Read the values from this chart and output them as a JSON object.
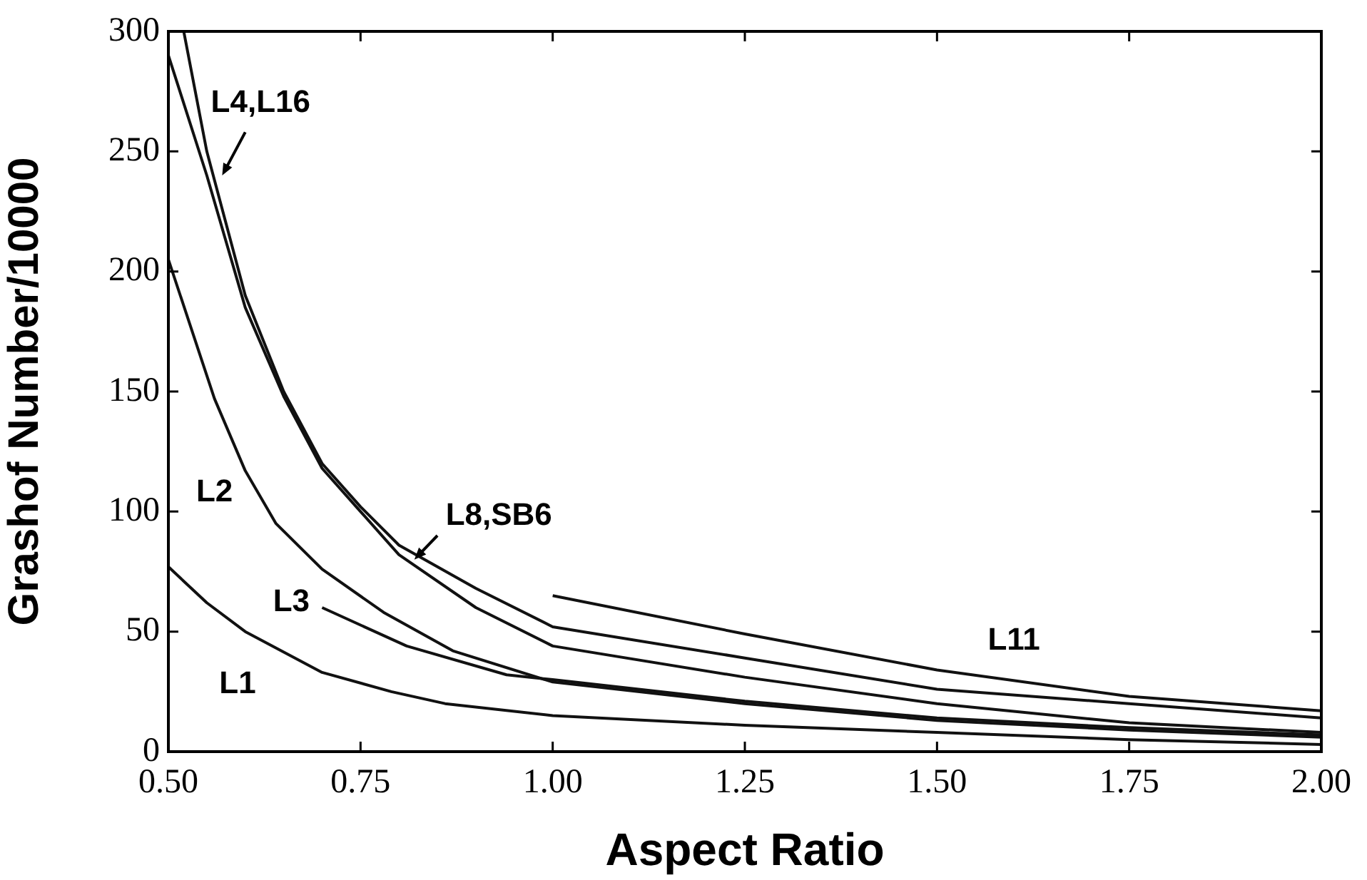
{
  "chart_data": {
    "type": "line",
    "xlabel": "Aspect Ratio",
    "ylabel": "Grashof Number/10000",
    "xlim": [
      0.5,
      2.0
    ],
    "xticks": [
      {
        "value": 0.5,
        "label": "0.50"
      },
      {
        "value": 0.75,
        "label": "0.75"
      },
      {
        "value": 1.0,
        "label": "1.00"
      },
      {
        "value": 1.25,
        "label": "1.25"
      },
      {
        "value": 1.5,
        "label": "1.50"
      },
      {
        "value": 1.75,
        "label": "1.75"
      },
      {
        "value": 2.0,
        "label": "2.00"
      }
    ],
    "ylim": [
      0,
      300
    ],
    "yticks": [
      0,
      50,
      100,
      150,
      200,
      250,
      300
    ],
    "grid": false,
    "legend": false,
    "marker": "none",
    "line_style": "solid",
    "series": [
      {
        "color": "#111111",
        "x": [
          0.52,
          0.55,
          0.6,
          0.65,
          0.7,
          0.75,
          0.8,
          0.9,
          1.0,
          1.25,
          1.5,
          1.75,
          2.0
        ],
        "values": [
          300,
          250,
          190,
          150,
          120,
          102,
          86,
          68,
          52,
          39,
          26,
          20,
          14
        ]
      },
      {
        "color": "#111111",
        "x": [
          0.5,
          0.55,
          0.6,
          0.65,
          0.7,
          0.75,
          0.8,
          0.9,
          1.0,
          1.25,
          1.5,
          1.75,
          2.0
        ],
        "values": [
          290,
          240,
          185,
          148,
          118,
          100,
          82,
          60,
          44,
          31,
          20,
          12,
          8
        ]
      },
      {
        "color": "#111111",
        "x": [
          0.5,
          0.56,
          0.6,
          0.64,
          0.7,
          0.78,
          0.87,
          1.0,
          1.25,
          1.5,
          1.75,
          2.0
        ],
        "values": [
          205,
          147,
          117,
          95,
          76,
          58,
          42,
          29,
          20,
          13,
          9,
          6
        ]
      },
      {
        "color": "#111111",
        "x": [
          0.7,
          0.81,
          0.94,
          1.0,
          1.25,
          1.5,
          1.75,
          2.0
        ],
        "values": [
          60,
          44,
          32,
          30,
          21,
          14,
          10,
          7
        ]
      },
      {
        "color": "#111111",
        "x": [
          0.5,
          0.55,
          0.6,
          0.7,
          0.79,
          0.86,
          1.0,
          1.25,
          1.5,
          1.75,
          2.0
        ],
        "values": [
          77,
          62,
          50,
          33,
          25,
          20,
          15,
          11,
          8,
          5,
          3
        ]
      },
      {
        "color": "#111111",
        "x": [
          1.0,
          1.25,
          1.5,
          1.75,
          2.0
        ],
        "values": [
          65,
          49,
          34,
          23,
          17
        ]
      }
    ],
    "annotations": [
      "L4,L16",
      "L8,SB6",
      "L2",
      "L3",
      "L1",
      "L11"
    ]
  }
}
